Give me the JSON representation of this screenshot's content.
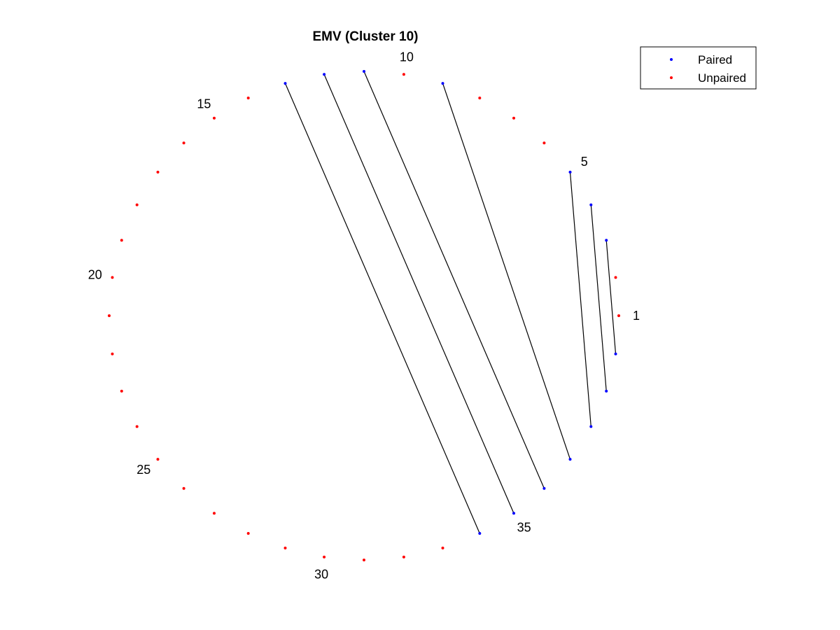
{
  "title": "EMV (Cluster 10)",
  "legend": {
    "paired_label": "Paired",
    "unpaired_label": "Unpaired",
    "placement": "top-right"
  },
  "colors": {
    "paired": "#0000ff",
    "unpaired": "#ff0000",
    "pair_line": "#000000"
  },
  "chart_data": {
    "type": "arc-diagram",
    "total_positions": 40,
    "position_labels": [
      {
        "position": 1,
        "text": "1"
      },
      {
        "position": 5,
        "text": "5"
      },
      {
        "position": 10,
        "text": "10"
      },
      {
        "position": 15,
        "text": "15"
      },
      {
        "position": 20,
        "text": "20"
      },
      {
        "position": 25,
        "text": "25"
      },
      {
        "position": 30,
        "text": "30"
      },
      {
        "position": 35,
        "text": "35"
      }
    ],
    "pairs": [
      [
        3,
        40
      ],
      [
        4,
        39
      ],
      [
        5,
        38
      ],
      [
        9,
        37
      ],
      [
        11,
        36
      ],
      [
        12,
        35
      ],
      [
        13,
        34
      ]
    ]
  }
}
